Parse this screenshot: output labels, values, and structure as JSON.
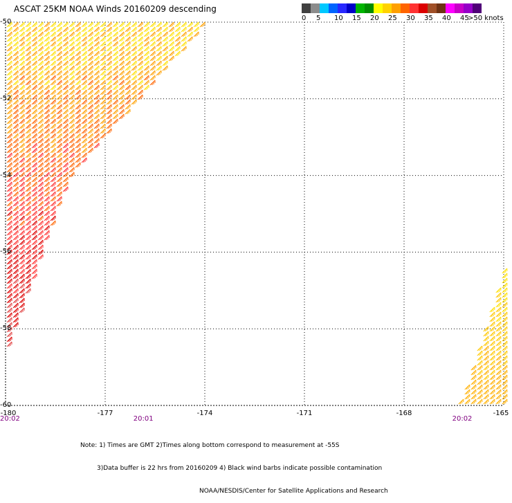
{
  "title": "ASCAT 25KM NOAA Winds 20160209 descending",
  "color_scale": {
    "segments": [
      {
        "color": "#404040"
      },
      {
        "color": "#8c8c8c"
      },
      {
        "color": "#00c8ff"
      },
      {
        "color": "#0064ff"
      },
      {
        "color": "#2828ff"
      },
      {
        "color": "#0000c8"
      },
      {
        "color": "#00b400"
      },
      {
        "color": "#008c00"
      },
      {
        "color": "#ffff00"
      },
      {
        "color": "#ffd200"
      },
      {
        "color": "#ffa000"
      },
      {
        "color": "#ff6400"
      },
      {
        "color": "#ff3232"
      },
      {
        "color": "#dc0000"
      },
      {
        "color": "#a05028"
      },
      {
        "color": "#6e3214"
      },
      {
        "color": "#ff00ff"
      },
      {
        "color": "#c800c8"
      },
      {
        "color": "#9600c8"
      },
      {
        "color": "#500078"
      }
    ],
    "labels": [
      {
        "text": "0",
        "pos": 0
      },
      {
        "text": "5",
        "pos": 2
      },
      {
        "text": "10",
        "pos": 4
      },
      {
        "text": "15",
        "pos": 6
      },
      {
        "text": "20",
        "pos": 8
      },
      {
        "text": "25",
        "pos": 10
      },
      {
        "text": "30",
        "pos": 12
      },
      {
        "text": "35",
        "pos": 14
      },
      {
        "text": "40",
        "pos": 16
      },
      {
        "text": "45",
        "pos": 18
      },
      {
        "text": ">50 knots",
        "pos": 20
      }
    ]
  },
  "axes": {
    "lat_ticks": [
      {
        "label": "-50",
        "value": -50
      },
      {
        "label": "-52",
        "value": -52
      },
      {
        "label": "-54",
        "value": -54
      },
      {
        "label": "-56",
        "value": -56
      },
      {
        "label": "-58",
        "value": -58
      },
      {
        "label": "-60",
        "value": -60
      }
    ],
    "lon_ticks": [
      {
        "label": "-180",
        "value": -180
      },
      {
        "label": "-177",
        "value": -177
      },
      {
        "label": "-174",
        "value": -174
      },
      {
        "label": "-171",
        "value": -171
      },
      {
        "label": "-168",
        "value": -168
      },
      {
        "label": "-165",
        "value": -165
      }
    ],
    "lon_range": [
      -180,
      -165
    ],
    "lat_range": [
      -60,
      -50
    ]
  },
  "times": [
    {
      "text": "20:02",
      "lon": -180
    },
    {
      "text": "20:01",
      "lon": -175.9
    },
    {
      "text": "20:02",
      "lon": -166.3
    }
  ],
  "notes": [
    "Note: 1) Times are GMT 2)Times along bottom correspond to measurement at -55S",
    "3)Data buffer is 22 hrs from 20160209 4) Black wind barbs indicate possible contamination",
    "NOAA/NESDIS/Center for Satellite Applications and Research"
  ],
  "swaths": [
    {
      "name": "west-swath",
      "lon_lat": [
        [
          -180,
          -50
        ],
        [
          -174,
          -50
        ],
        [
          -178.1,
          -54
        ],
        [
          -180,
          -58.5
        ]
      ],
      "colors": [
        "#ffe000",
        "#ffa000",
        "#ff6400",
        "#ff3232",
        "#dc0000",
        "#e04040"
      ]
    },
    {
      "name": "east-swath",
      "lon_lat": [
        [
          -165,
          -56.3
        ],
        [
          -165,
          -60
        ],
        [
          -166.4,
          -60
        ]
      ],
      "colors": [
        "#ffe000",
        "#ffc800",
        "#ffb000"
      ]
    }
  ]
}
